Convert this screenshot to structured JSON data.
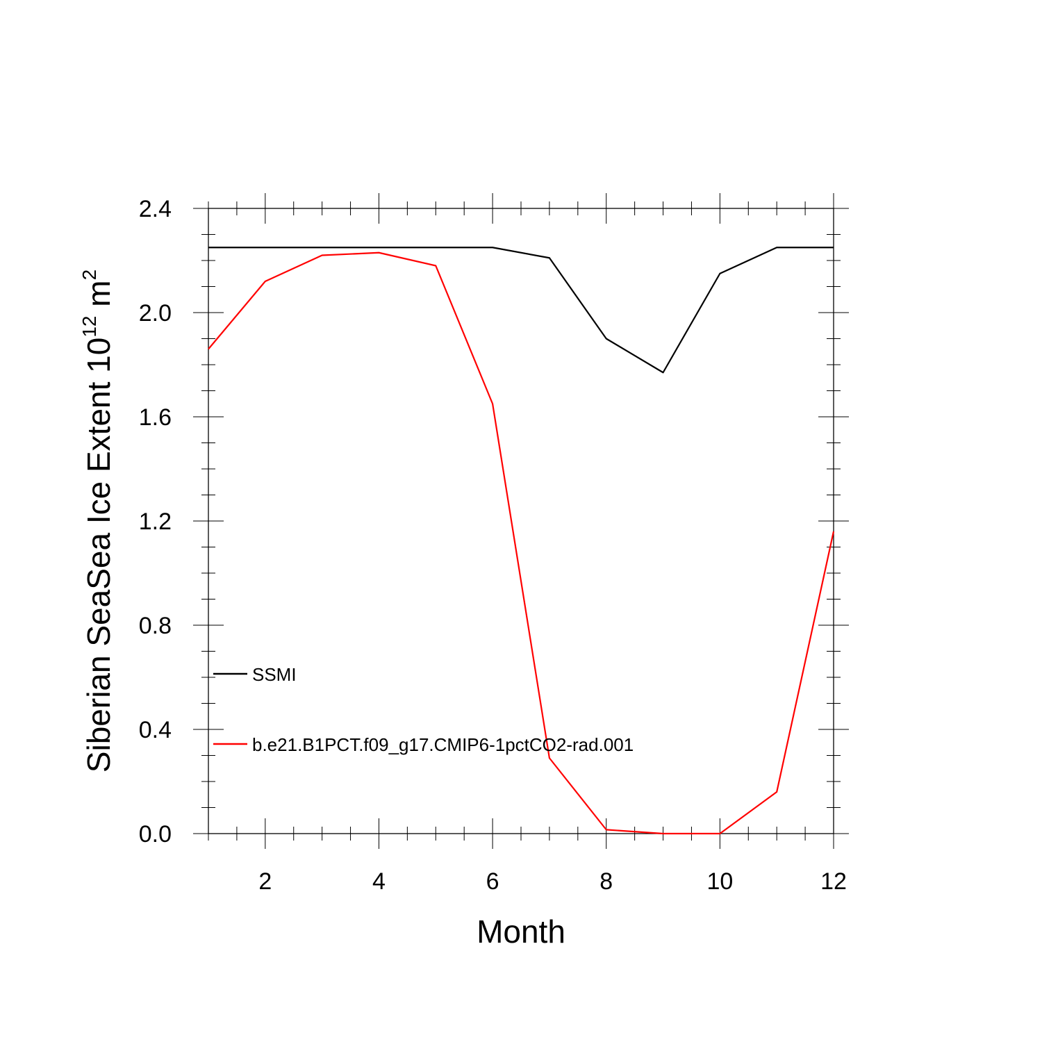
{
  "chart_data": {
    "type": "line",
    "xlabel": "Month",
    "ylabel": {
      "main": "Siberian SeaSea Ice Extent 10",
      "exp1": "12",
      "unit": " m",
      "exp2": "2"
    },
    "xlim": [
      1,
      12
    ],
    "ylim": [
      0,
      2.4
    ],
    "x_ticks": [
      2,
      4,
      6,
      8,
      10,
      12
    ],
    "x_tick_labels": [
      "2",
      "4",
      "6",
      "8",
      "10",
      "12"
    ],
    "x_minor_ticks": [
      1,
      1.5,
      2.5,
      3,
      3.5,
      4.5,
      5,
      5.5,
      6.5,
      7,
      7.5,
      8.5,
      9,
      9.5,
      10.5,
      11,
      11.5
    ],
    "y_ticks": [
      0.0,
      0.4,
      0.8,
      1.2,
      1.6,
      2.0,
      2.4
    ],
    "y_tick_labels": [
      "0.0",
      "0.4",
      "0.8",
      "1.2",
      "1.6",
      "2.0",
      "2.4"
    ],
    "y_minor_ticks": [
      0.1,
      0.2,
      0.3,
      0.5,
      0.6,
      0.7,
      0.9,
      1.0,
      1.1,
      1.3,
      1.4,
      1.5,
      1.7,
      1.8,
      1.9,
      2.1,
      2.2,
      2.3
    ],
    "grid": false,
    "legend_placement": "lower-left",
    "x": [
      1,
      2,
      3,
      4,
      5,
      6,
      7,
      8,
      9,
      10,
      11,
      12
    ],
    "series": [
      {
        "name": "SSMI",
        "color": "#000000",
        "values": [
          2.25,
          2.25,
          2.25,
          2.25,
          2.25,
          2.25,
          2.21,
          1.9,
          1.77,
          2.15,
          2.25,
          2.25
        ]
      },
      {
        "name": "b.e21.B1PCT.f09_g17.CMIP6-1pctCO2-rad.001",
        "color": "#ff0000",
        "values": [
          1.86,
          2.12,
          2.22,
          2.23,
          2.18,
          1.65,
          0.29,
          0.015,
          0.0,
          0.0,
          0.16,
          1.16
        ]
      }
    ]
  }
}
